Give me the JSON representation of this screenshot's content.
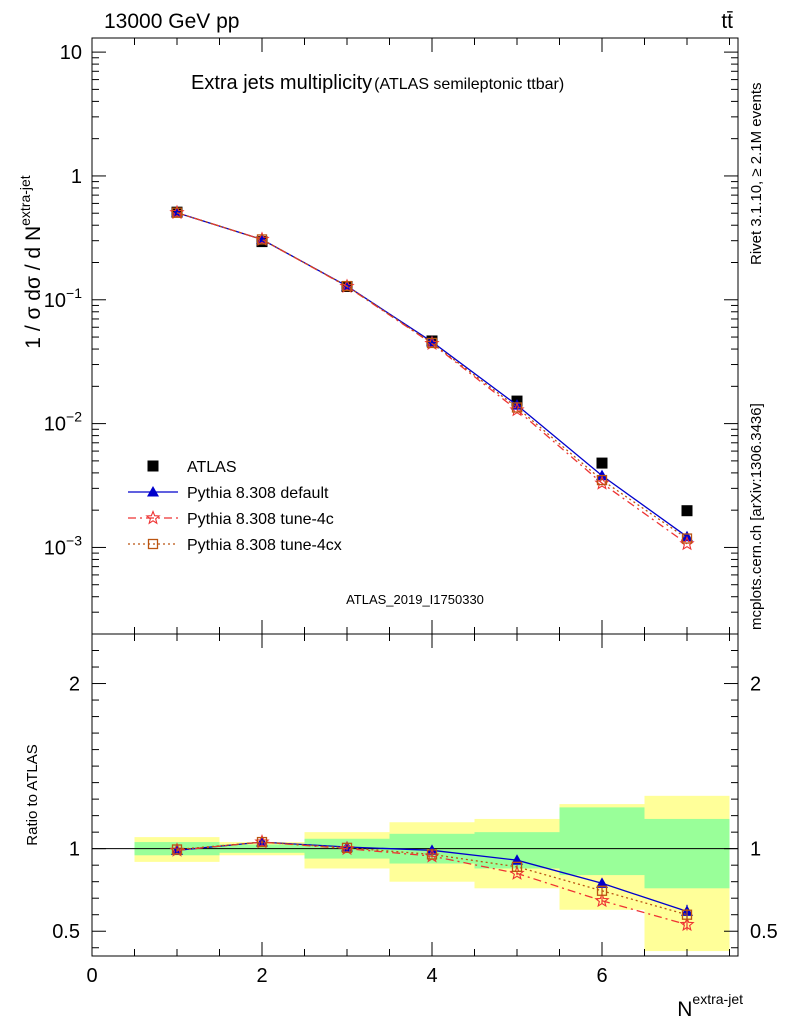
{
  "header": {
    "energy_label": "13000 GeV pp",
    "process_label": "tt̄",
    "side_rivet": "Rivet 3.1.10, ≥ 2.1M events",
    "side_mcplots": "mcplots.cern.ch [arXiv:1306.3436]"
  },
  "chart_data": [
    {
      "type": "line",
      "title": "Extra jets multiplicity",
      "subtitle": "(ATLAS semileptonic ttbar)",
      "analysis_label": "ATLAS_2019_I1750330",
      "ylabel": "1 / σ dσ / d N",
      "ylabel_sup": "extra-jet",
      "yscale": "log",
      "ylim": [
        0.0002,
        13
      ],
      "xlim": [
        0,
        7.6
      ],
      "y_ticks": [
        {
          "label": "10",
          "value": 10
        },
        {
          "label": "1",
          "value": 1
        },
        {
          "label": "10",
          "sup": "−1",
          "value": 0.1
        },
        {
          "label": "10",
          "sup": "−2",
          "value": 0.01
        },
        {
          "label": "10",
          "sup": "−3",
          "value": 0.001
        }
      ],
      "legend_position": "lower-left",
      "x": [
        1,
        2,
        3,
        4,
        5,
        6,
        7
      ],
      "series": [
        {
          "name": "ATLAS",
          "color": "#000000",
          "marker": "square",
          "values": [
            0.51,
            0.295,
            0.128,
            0.0465,
            0.0152,
            0.0048,
            0.00198
          ]
        },
        {
          "name": "Pythia 8.308 default",
          "color": "#0000cc",
          "marker": "triangle",
          "style": "solid",
          "values": [
            0.505,
            0.307,
            0.129,
            0.0458,
            0.0141,
            0.0038,
            0.00122
          ]
        },
        {
          "name": "Pythia 8.308 tune-4c",
          "color": "#ee3333",
          "marker": "star",
          "style": "dashdot",
          "values": [
            0.505,
            0.307,
            0.128,
            0.0443,
            0.0129,
            0.0033,
            0.00107
          ]
        },
        {
          "name": "Pythia 8.308 tune-4cx",
          "color": "#bb5511",
          "marker": "open-square",
          "style": "dotted",
          "values": [
            0.505,
            0.307,
            0.129,
            0.0448,
            0.0135,
            0.0035,
            0.00118
          ]
        }
      ]
    },
    {
      "type": "line",
      "ylabel": "Ratio to ATLAS",
      "xlabel": "N",
      "xlabel_sup": "extra-jet",
      "ylim": [
        0.35,
        2.3
      ],
      "xlim": [
        0,
        7.6
      ],
      "x_ticks": [
        0,
        2,
        4,
        6
      ],
      "y_ticks": [
        {
          "label": "0.5",
          "value": 0.5
        },
        {
          "label": "1",
          "value": 1
        },
        {
          "label": "2",
          "value": 2
        }
      ],
      "x": [
        1,
        2,
        3,
        4,
        5,
        6,
        7
      ],
      "bands": {
        "bins": [
          [
            0.5,
            1.5
          ],
          [
            1.5,
            2.5
          ],
          [
            2.5,
            3.5
          ],
          [
            3.5,
            4.5
          ],
          [
            4.5,
            5.5
          ],
          [
            5.5,
            6.5
          ],
          [
            6.5,
            7.5
          ]
        ],
        "yellow": [
          [
            0.92,
            1.07
          ],
          [
            0.96,
            1.04
          ],
          [
            0.88,
            1.1
          ],
          [
            0.8,
            1.16
          ],
          [
            0.76,
            1.18
          ],
          [
            0.63,
            1.27
          ],
          [
            0.38,
            1.32
          ]
        ],
        "green": [
          [
            0.96,
            1.04
          ],
          [
            0.975,
            1.025
          ],
          [
            0.94,
            1.06
          ],
          [
            0.91,
            1.09
          ],
          [
            0.88,
            1.1
          ],
          [
            0.84,
            1.25
          ],
          [
            0.76,
            1.18
          ]
        ],
        "yellow_color": "#ffff99",
        "green_color": "#99ff99"
      },
      "series": [
        {
          "name": "Pythia 8.308 default",
          "color": "#0000cc",
          "marker": "triangle",
          "style": "solid",
          "values": [
            0.99,
            1.04,
            1.01,
            0.99,
            0.93,
            0.79,
            0.62
          ],
          "errors": [
            0.01,
            0.01,
            0.01,
            0.01,
            0.01,
            0.02,
            0.04
          ]
        },
        {
          "name": "Pythia 8.308 tune-4c",
          "color": "#ee3333",
          "marker": "star",
          "style": "dashdot",
          "values": [
            0.99,
            1.04,
            1.0,
            0.955,
            0.85,
            0.685,
            0.54
          ],
          "errors": [
            0.01,
            0.01,
            0.01,
            0.01,
            0.01,
            0.02,
            0.035
          ]
        },
        {
          "name": "Pythia 8.308 tune-4cx",
          "color": "#bb5511",
          "marker": "open-square",
          "style": "dotted",
          "values": [
            0.995,
            1.04,
            1.005,
            0.965,
            0.89,
            0.745,
            0.6
          ],
          "errors": [
            0.01,
            0.01,
            0.01,
            0.01,
            0.01,
            0.02,
            0.035
          ]
        }
      ]
    }
  ]
}
